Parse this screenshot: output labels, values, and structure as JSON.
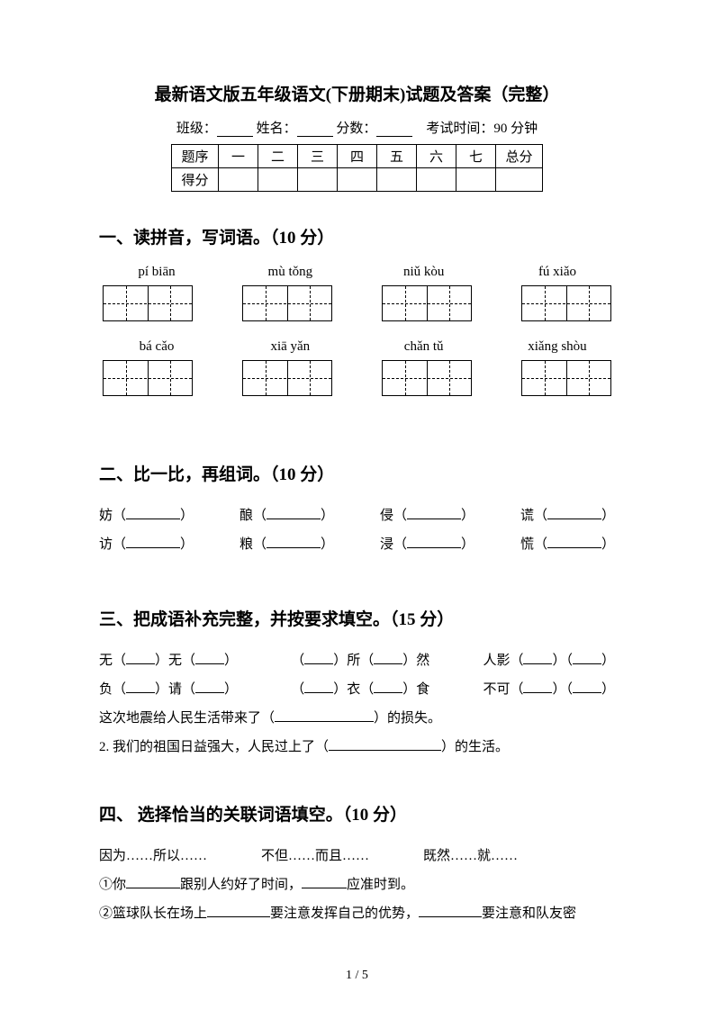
{
  "title": "最新语文版五年级语文(下册期末)试题及答案（完整）",
  "info": {
    "class_label": "班级：",
    "name_label": "姓名：",
    "score_label": "分数：",
    "time_label": "考试时间：90 分钟"
  },
  "score_table": {
    "headers": [
      "题序",
      "一",
      "二",
      "三",
      "四",
      "五",
      "六",
      "七",
      "总分"
    ],
    "row_label": "得分"
  },
  "sections": {
    "s1": {
      "heading": "一、读拼音，写词语。（10 分）",
      "pinyin_row1": [
        "pí   biān",
        "mù tǒng",
        "niǔ kòu",
        "fú xiǎo"
      ],
      "pinyin_row2": [
        "bá   cǎo",
        "xiā yǎn",
        "chǎn tǔ",
        "xiǎng shòu"
      ]
    },
    "s2": {
      "heading": "二、比一比，再组词。（10 分）",
      "row1": [
        "妨",
        "酿",
        "侵",
        "谎"
      ],
      "row2": [
        "访",
        "粮",
        "浸",
        "慌"
      ]
    },
    "s3": {
      "heading": "三、把成语补充完整，并按要求填空。（15 分）",
      "line1": {
        "a": "无（",
        "b": "）无（",
        "c": "）",
        "d": "（",
        "e": "）所（",
        "f": "）然",
        "g": "人影（",
        "h": "）（",
        "i": "）"
      },
      "line2": {
        "a": "负（",
        "b": "）请（",
        "c": "）",
        "d": "（",
        "e": "）衣（",
        "f": "）食",
        "g": "不可（",
        "h": "）（",
        "i": "）"
      },
      "line3_pre": "这次地震给人民生活带来了（",
      "line3_post": "）的损失。",
      "line4_pre": "2. 我们的祖国日益强大，人民过上了（",
      "line4_post": "）的生活。"
    },
    "s4": {
      "heading": "四、 选择恰当的关联词语填空。（10 分）",
      "opt1": "因为……所以……",
      "opt2": "不但……而且……",
      "opt3": "既然……就……",
      "q1_a": "①你",
      "q1_b": "跟别人约好了时间，",
      "q1_c": "应准时到。",
      "q2_a": "②篮球队长在场上",
      "q2_b": "要注意发挥自己的优势，",
      "q2_c": "要注意和队友密"
    }
  },
  "page": "1 / 5",
  "colors": {
    "text": "#000000",
    "background": "#ffffff"
  }
}
